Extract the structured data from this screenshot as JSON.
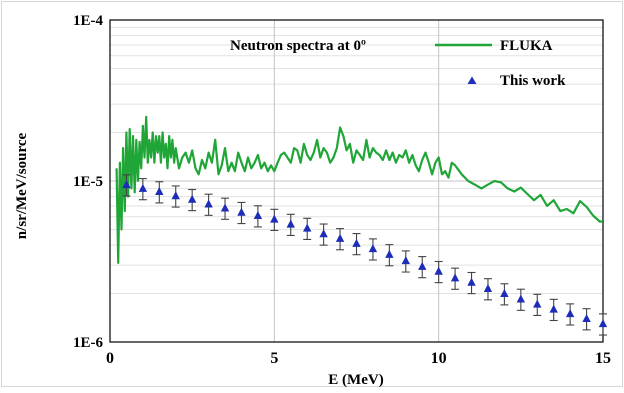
{
  "chart_data": {
    "type": "line",
    "title": "Neutron spectra at 0º",
    "xlabel": "E (MeV)",
    "ylabel": "n/sr/MeV/source",
    "xlim": [
      0,
      15
    ],
    "ylim": [
      1e-06,
      0.0001
    ],
    "yscale": "log",
    "x_ticks": [
      0,
      5,
      10,
      15
    ],
    "x_tick_labels": [
      "0",
      "5",
      "10",
      "15"
    ],
    "y_ticks": [
      1e-06,
      1e-05,
      0.0001
    ],
    "y_tick_labels": [
      "1E-6",
      "1E-5",
      "1E-4"
    ],
    "grid": true,
    "legend_position": "top-right",
    "series": [
      {
        "name": "FLUKA",
        "style": "line",
        "color": "#1fa637",
        "x": [
          0.2,
          0.25,
          0.3,
          0.35,
          0.4,
          0.45,
          0.5,
          0.55,
          0.6,
          0.65,
          0.7,
          0.75,
          0.8,
          0.85,
          0.9,
          0.95,
          1.0,
          1.05,
          1.1,
          1.15,
          1.2,
          1.25,
          1.3,
          1.35,
          1.4,
          1.45,
          1.5,
          1.55,
          1.6,
          1.65,
          1.7,
          1.75,
          1.8,
          1.85,
          1.9,
          1.95,
          2.0,
          2.1,
          2.2,
          2.3,
          2.4,
          2.5,
          2.6,
          2.7,
          2.8,
          2.9,
          3.0,
          3.1,
          3.2,
          3.3,
          3.4,
          3.5,
          3.6,
          3.7,
          3.8,
          3.9,
          4.0,
          4.1,
          4.2,
          4.3,
          4.4,
          4.5,
          4.6,
          4.7,
          4.8,
          4.9,
          5.0,
          5.1,
          5.2,
          5.3,
          5.4,
          5.5,
          5.6,
          5.7,
          5.8,
          5.9,
          6.0,
          6.1,
          6.2,
          6.3,
          6.4,
          6.5,
          6.6,
          6.7,
          6.8,
          6.9,
          7.0,
          7.1,
          7.2,
          7.3,
          7.4,
          7.5,
          7.6,
          7.7,
          7.8,
          7.9,
          8.0,
          8.1,
          8.2,
          8.3,
          8.4,
          8.5,
          8.6,
          8.7,
          8.8,
          8.9,
          9.0,
          9.1,
          9.2,
          9.3,
          9.4,
          9.5,
          9.6,
          9.7,
          9.8,
          9.9,
          10.0,
          10.1,
          10.2,
          10.3,
          10.4,
          10.5,
          10.7,
          10.9,
          11.1,
          11.3,
          11.5,
          11.7,
          11.9,
          12.1,
          12.3,
          12.5,
          12.7,
          12.9,
          13.1,
          13.3,
          13.5,
          13.7,
          13.9,
          14.1,
          14.3,
          14.5,
          14.7,
          14.9,
          15.0
        ],
        "values": [
          1.2e-05,
          3.1e-06,
          1.3e-05,
          5e-06,
          1.6e-05,
          6.5e-06,
          2e-05,
          8e-06,
          2.1e-05,
          9e-06,
          1.9e-05,
          8.5e-06,
          1.8e-05,
          1e-05,
          1.75e-05,
          1.2e-05,
          2.2e-05,
          1.4e-05,
          2.5e-05,
          1.3e-05,
          1.8e-05,
          1.4e-05,
          2e-05,
          1.3e-05,
          1.9e-05,
          1.5e-05,
          1.9e-05,
          1.3e-05,
          2e-05,
          1.4e-05,
          1.7e-05,
          1.2e-05,
          1.9e-05,
          1.4e-05,
          1.8e-05,
          1.3e-05,
          1.6e-05,
          1.2e-05,
          1.4e-05,
          1.5e-05,
          1.3e-05,
          1.55e-05,
          1.2e-05,
          1.1e-05,
          1.35e-05,
          1.2e-05,
          1.5e-05,
          1.3e-05,
          1.8e-05,
          1.1e-05,
          1.25e-05,
          1.6e-05,
          1.15e-05,
          1.3e-05,
          1.15e-05,
          1.5e-05,
          1.3e-05,
          1.15e-05,
          1.4e-05,
          1.2e-05,
          1.3e-05,
          1.45e-05,
          1.2e-05,
          1.3e-05,
          1.15e-05,
          1.25e-05,
          1.15e-05,
          1.3e-05,
          1.45e-05,
          1.5e-05,
          1.4e-05,
          1.3e-05,
          1.6e-05,
          1.55e-05,
          1.3e-05,
          1.7e-05,
          1.45e-05,
          1.35e-05,
          1.5e-05,
          1.8e-05,
          1.4e-05,
          1.6e-05,
          1.5e-05,
          1.3e-05,
          1.4e-05,
          1.6e-05,
          2.15e-05,
          1.9e-05,
          1.55e-05,
          1.7e-05,
          1.3e-05,
          1.55e-05,
          1.45e-05,
          1.35e-05,
          1.8e-05,
          1.4e-05,
          1.6e-05,
          1.5e-05,
          1.45e-05,
          1.35e-05,
          1.55e-05,
          1.35e-05,
          1.5e-05,
          1.3e-05,
          1.45e-05,
          1.4e-05,
          1.55e-05,
          1.3e-05,
          1.45e-05,
          1.25e-05,
          1.15e-05,
          1.35e-05,
          1.5e-05,
          1.3e-05,
          1.1e-05,
          1.3e-05,
          1.4e-05,
          1.1e-05,
          1.15e-05,
          1.05e-05,
          1.3e-05,
          1.25e-05,
          1.1e-05,
          1e-05,
          9.5e-06,
          9e-06,
          9.5e-06,
          1e-05,
          9.8e-06,
          9e-06,
          8.6e-06,
          9.1e-06,
          8.3e-06,
          7.6e-06,
          8.2e-06,
          7e-06,
          7.6e-06,
          6.5e-06,
          6.7e-06,
          6.3e-06,
          7.5e-06,
          6.9e-06,
          6.1e-06,
          5.6e-06,
          5.6e-06
        ]
      },
      {
        "name": "This work",
        "style": "markers",
        "marker": "triangle",
        "color": "#1d2db8",
        "error_color": "#444444",
        "error_fraction": 0.15,
        "x": [
          0.5,
          1.0,
          1.5,
          2.0,
          2.5,
          3.0,
          3.5,
          4.0,
          4.5,
          5.0,
          5.5,
          6.0,
          6.5,
          7.0,
          7.5,
          8.0,
          8.5,
          9.0,
          9.5,
          10.0,
          10.5,
          11.0,
          11.5,
          12.0,
          12.5,
          13.0,
          13.5,
          14.0,
          14.5,
          15.0
        ],
        "values": [
          9.5e-06,
          9e-06,
          8.6e-06,
          8.1e-06,
          7.7e-06,
          7.2e-06,
          6.8e-06,
          6.4e-06,
          6.1e-06,
          5.8e-06,
          5.4e-06,
          5.1e-06,
          4.7e-06,
          4.4e-06,
          4.1e-06,
          3.8e-06,
          3.5e-06,
          3.2e-06,
          2.95e-06,
          2.75e-06,
          2.5e-06,
          2.35e-06,
          2.15e-06,
          2e-06,
          1.85e-06,
          1.72e-06,
          1.6e-06,
          1.5e-06,
          1.4e-06,
          1.3e-06
        ]
      }
    ]
  }
}
